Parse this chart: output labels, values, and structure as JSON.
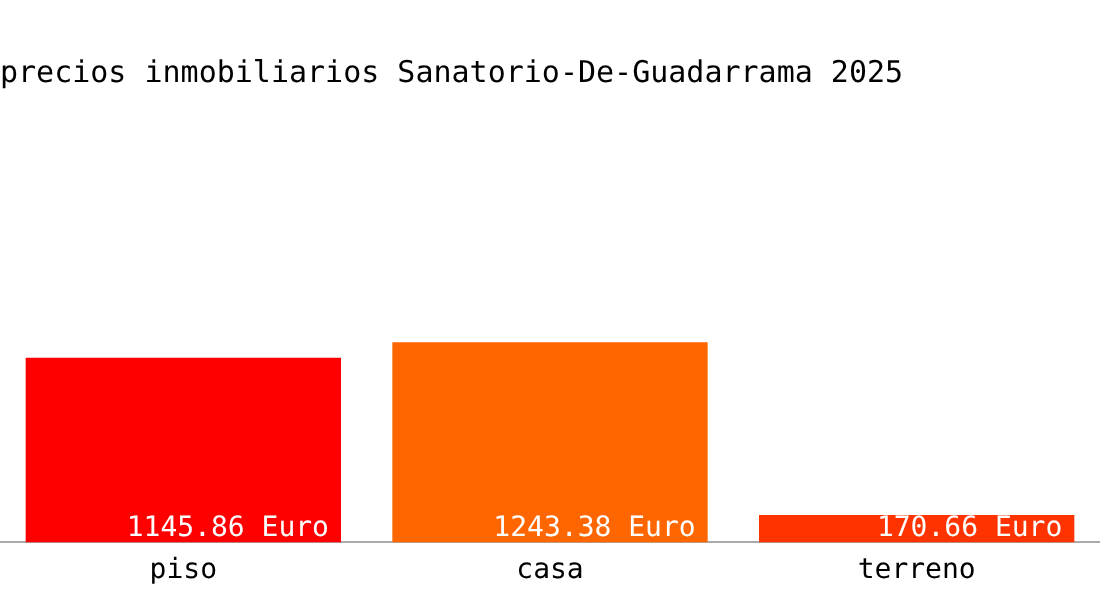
{
  "chart_data": {
    "type": "bar",
    "title": "precios inmobiliarios Sanatorio-De-Guadarrama 2025",
    "categories": [
      "piso",
      "casa",
      "terreno"
    ],
    "values": [
      1145.86,
      1243.38,
      170.66
    ],
    "colors": [
      "#ff0000",
      "#ff6600",
      "#ff3300"
    ],
    "value_labels": [
      "1145.86 Euro",
      "1243.38 Euro",
      "170.66 Euro"
    ],
    "grid": false,
    "legend": false
  }
}
